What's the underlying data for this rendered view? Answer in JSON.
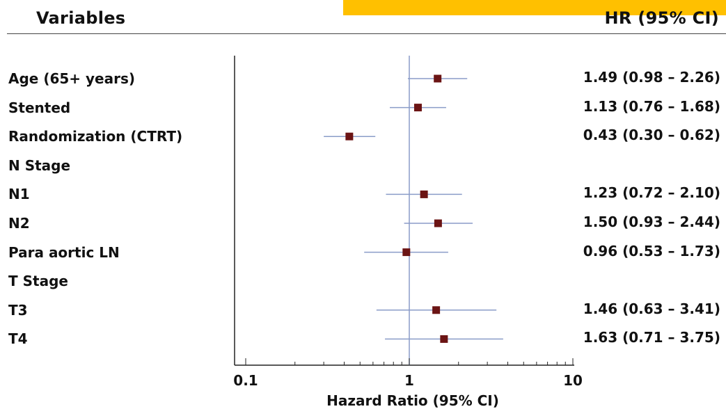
{
  "header": {
    "variables_label": "Variables",
    "hr_label": "HR (95% CI)"
  },
  "colors": {
    "banner": "#FFC000",
    "marker": "#6B1414",
    "ci_line": "#8A9CC8",
    "ref_line": "#8A9CC8"
  },
  "chart_data": {
    "type": "forest",
    "xscale": "log",
    "xlim": [
      0.1,
      10
    ],
    "xticks": [
      "0.1",
      "1",
      "10"
    ],
    "xlabel": "Hazard Ratio (95% CI)",
    "reference_line": 1,
    "rows": [
      {
        "label": "Age (65+ years)",
        "hr": 1.49,
        "lo": 0.98,
        "hi": 2.26,
        "text": "1.49 (0.98 – 2.26)"
      },
      {
        "label": "Stented",
        "hr": 1.13,
        "lo": 0.76,
        "hi": 1.68,
        "text": "1.13 (0.76 – 1.68)"
      },
      {
        "label": "Randomization (CTRT)",
        "hr": 0.43,
        "lo": 0.3,
        "hi": 0.62,
        "text": "0.43 (0.30 – 0.62)"
      },
      {
        "label": "N Stage",
        "hr": null,
        "lo": null,
        "hi": null,
        "text": ""
      },
      {
        "label": "N1",
        "hr": 1.23,
        "lo": 0.72,
        "hi": 2.1,
        "text": "1.23 (0.72 – 2.10)"
      },
      {
        "label": "N2",
        "hr": 1.5,
        "lo": 0.93,
        "hi": 2.44,
        "text": "1.50 (0.93 – 2.44)"
      },
      {
        "label": "Para aortic LN",
        "hr": 0.96,
        "lo": 0.53,
        "hi": 1.73,
        "text": "0.96 (0.53 – 1.73)"
      },
      {
        "label": "T Stage",
        "hr": null,
        "lo": null,
        "hi": null,
        "text": ""
      },
      {
        "label": "T3",
        "hr": 1.46,
        "lo": 0.63,
        "hi": 3.41,
        "text": "1.46 (0.63 – 3.41)"
      },
      {
        "label": "T4",
        "hr": 1.63,
        "lo": 0.71,
        "hi": 3.75,
        "text": "1.63 (0.71 – 3.75)"
      }
    ]
  }
}
